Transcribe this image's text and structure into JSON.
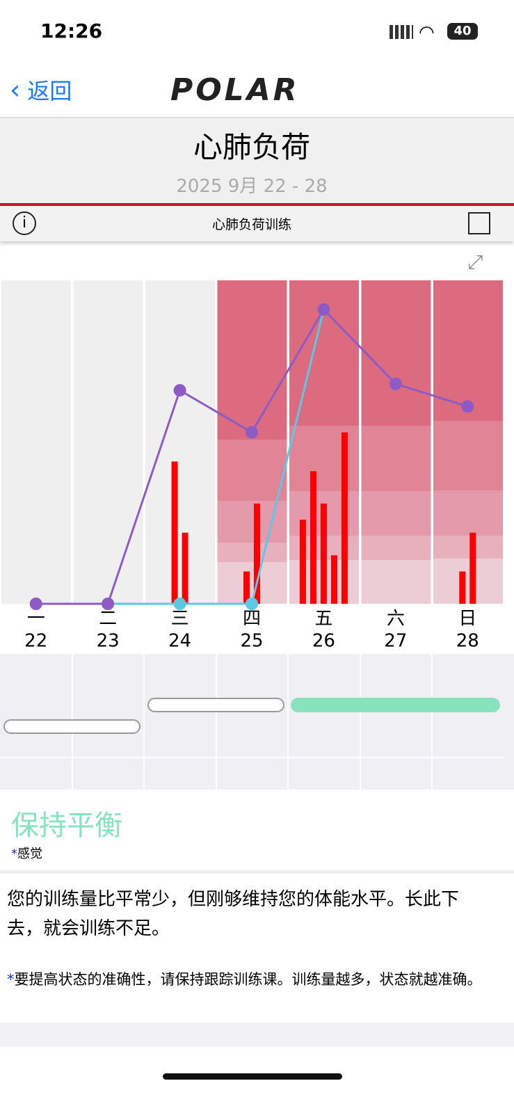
{
  "status": {
    "time": "12:26",
    "battery": "40"
  },
  "nav": {
    "back": "返回",
    "logo": "POLAR"
  },
  "header": {
    "title": "心肺负荷",
    "date_range": "2025 9月 22 - 28",
    "tab": "心肺负荷训练"
  },
  "chart_data": {
    "type": "line",
    "categories": [
      "一",
      "二",
      "三",
      "四",
      "五",
      "六",
      "日"
    ],
    "dates": [
      "22",
      "23",
      "24",
      "25",
      "26",
      "27",
      "28"
    ],
    "ylim": [
      0,
      100
    ],
    "series": [
      {
        "color": "#5bc8e6",
        "values": [
          null,
          0,
          0,
          0,
          91,
          null,
          null
        ]
      },
      {
        "color": "#8e5bc4",
        "values": [
          0,
          0,
          66,
          53,
          91,
          68,
          61
        ]
      }
    ],
    "bar_color": "#ff0000",
    "bars": [
      [],
      [],
      [
        44,
        22
      ],
      [
        10,
        31
      ],
      [
        26,
        41,
        31,
        15,
        53
      ],
      [],
      [
        10,
        22
      ]
    ]
  },
  "status_text": {
    "title": "保持平衡",
    "mark": "*",
    "label": "感觉"
  },
  "body": {
    "text": "您的训练量比平常少，但刚够维持您的体能水平。长此下去，就会训练不足。",
    "note_mark": "*",
    "note": "要提高状态的准确性，请保持跟踪训练课。训练量越多，状态就越准确。"
  }
}
